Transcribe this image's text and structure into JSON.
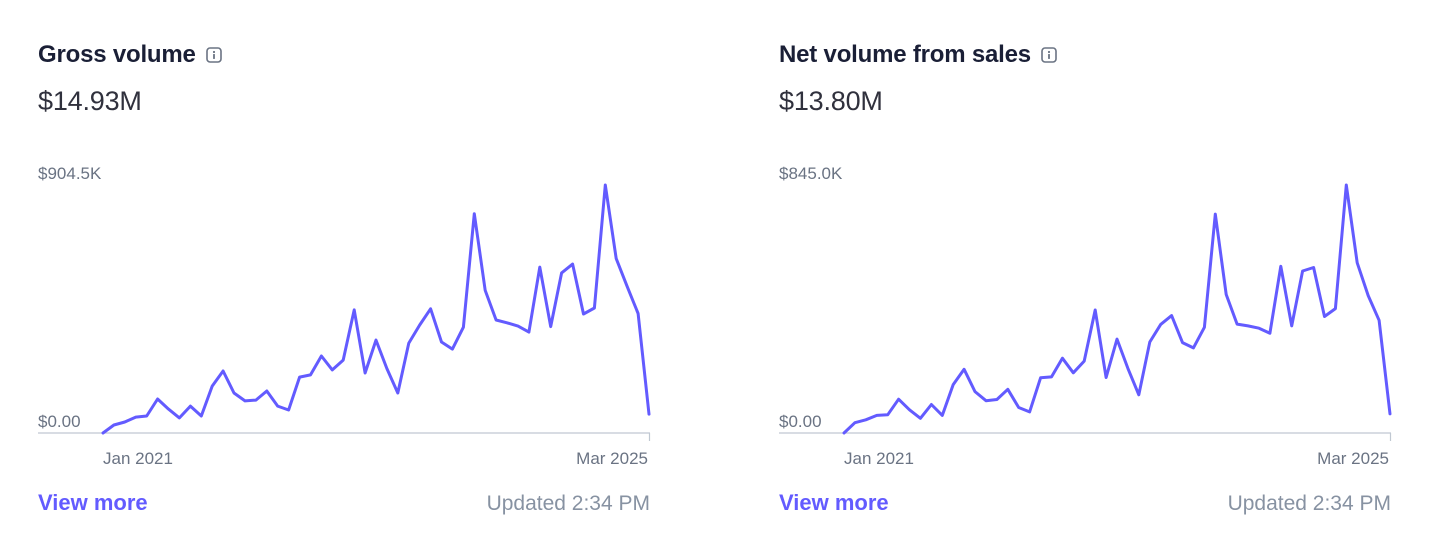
{
  "colors": {
    "line": "#635bff",
    "axis": "#c0c8d2",
    "link": "#635bff"
  },
  "cards": [
    {
      "title": "Gross volume",
      "info_icon": "info-icon",
      "total": "$14.93M",
      "view_more": "View more",
      "updated": "Updated 2:34 PM",
      "chart_data": {
        "type": "line",
        "y_top_label": "$904.5K",
        "y_bottom_label": "$0.00",
        "x_start_label": "Jan 2021",
        "x_end_label": "Mar 2025",
        "ylim": [
          0,
          904500
        ],
        "grid": false,
        "legend": "none",
        "series": [
          {
            "values": [
              0,
              29000,
              40000,
              58000,
              62000,
              124000,
              87000,
              55000,
              98000,
              62000,
              171000,
              226000,
              146000,
              117000,
              120000,
              153000,
              98000,
              84000,
              204000,
              212000,
              281000,
              230000,
              266000,
              449000,
              219000,
              339000,
              235000,
              146000,
              328000,
              394000,
              453000,
              332000,
              306000,
              386000,
              800000,
              520000,
              412000,
              402000,
              390000,
              368000,
              605000,
              388000,
              584000,
              616000,
              434000,
              456000,
              904500,
              636000,
              534000,
              436000,
              69000
            ]
          }
        ]
      }
    },
    {
      "title": "Net volume from sales",
      "info_icon": "info-icon",
      "total": "$13.80M",
      "view_more": "View more",
      "updated": "Updated 2:34 PM",
      "chart_data": {
        "type": "line",
        "y_top_label": "$845.0K",
        "y_bottom_label": "$0.00",
        "x_start_label": "Jan 2021",
        "x_end_label": "Mar 2025",
        "ylim": [
          0,
          845000
        ],
        "grid": false,
        "legend": "none",
        "series": [
          {
            "values": [
              0,
              35000,
              45000,
              60000,
              62000,
              115000,
              79000,
              50000,
              97000,
              60000,
              165000,
              217000,
              141000,
              110000,
              114000,
              149000,
              87000,
              72000,
              188000,
              191000,
              255000,
              205000,
              245000,
              419000,
              189000,
              320000,
              220000,
              130000,
              310000,
              370000,
              400000,
              308000,
              290000,
              360000,
              746000,
              472000,
              371000,
              365000,
              357000,
              340000,
              568000,
              365000,
              552000,
              564000,
              397000,
              424000,
              845000,
              580000,
              468000,
              384000,
              65000
            ]
          }
        ]
      }
    }
  ]
}
